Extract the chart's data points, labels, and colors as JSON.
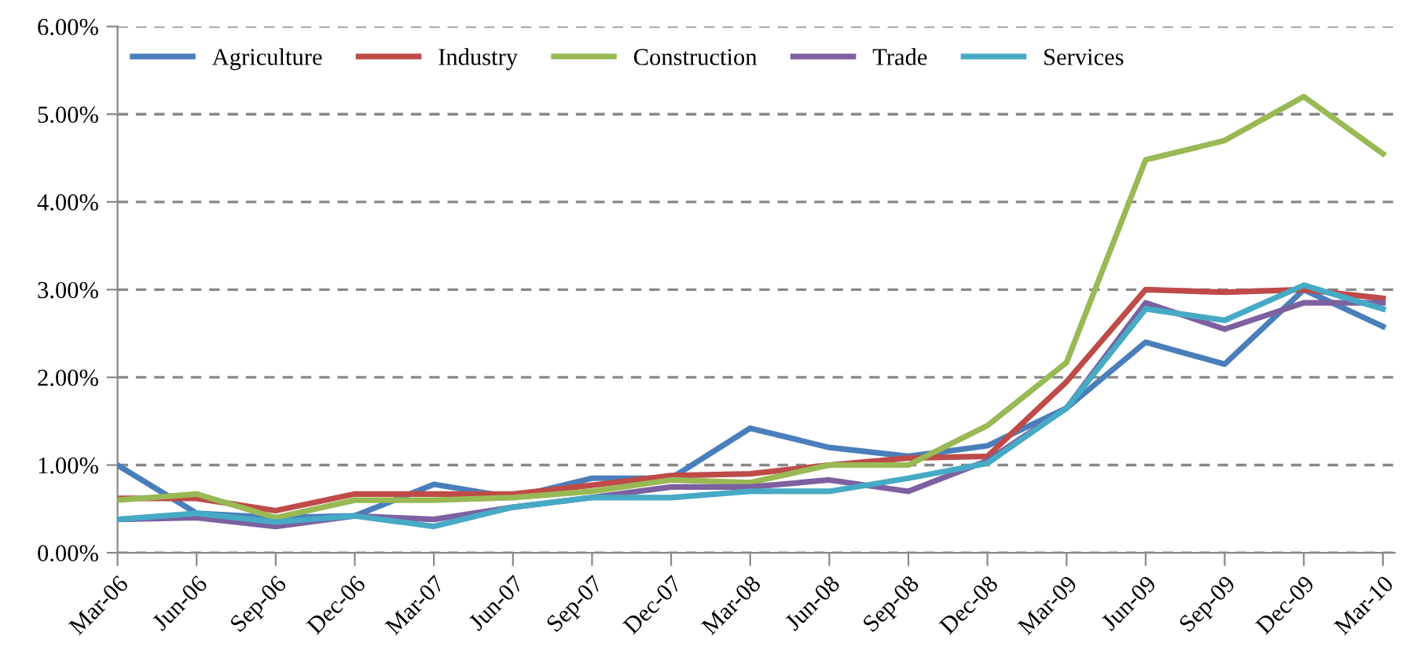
{
  "chart_data": {
    "type": "line",
    "categories": [
      "Mar-06",
      "Jun-06",
      "Sep-06",
      "Dec-06",
      "Mar-07",
      "Jun-07",
      "Sep-07",
      "Dec-07",
      "Mar-08",
      "Jun-08",
      "Sep-08",
      "Dec-08",
      "Mar-09",
      "Jun-09",
      "Sep-09",
      "Dec-09",
      "Mar-10"
    ],
    "series": [
      {
        "name": "Agriculture",
        "color": "#4a7ebb",
        "values": [
          1.0,
          0.45,
          0.4,
          0.42,
          0.78,
          0.63,
          0.85,
          0.85,
          1.42,
          1.2,
          1.1,
          1.22,
          1.65,
          2.4,
          2.15,
          3.0,
          2.58
        ]
      },
      {
        "name": "Industry",
        "color": "#be4b48",
        "values": [
          0.62,
          0.62,
          0.48,
          0.67,
          0.67,
          0.67,
          0.77,
          0.88,
          0.9,
          1.0,
          1.08,
          1.1,
          1.95,
          3.0,
          2.97,
          3.0,
          2.9
        ]
      },
      {
        "name": "Construction",
        "color": "#98b954",
        "values": [
          0.6,
          0.67,
          0.4,
          0.6,
          0.6,
          0.63,
          0.7,
          0.83,
          0.8,
          1.0,
          1.0,
          1.45,
          2.17,
          4.48,
          4.7,
          5.2,
          4.55
        ]
      },
      {
        "name": "Trade",
        "color": "#7d60a0",
        "values": [
          0.38,
          0.4,
          0.3,
          0.42,
          0.38,
          0.52,
          0.63,
          0.75,
          0.75,
          0.83,
          0.7,
          1.05,
          1.65,
          2.85,
          2.55,
          2.85,
          2.85
        ]
      },
      {
        "name": "Services",
        "color": "#46aac5",
        "values": [
          0.38,
          0.45,
          0.35,
          0.42,
          0.3,
          0.52,
          0.63,
          0.63,
          0.7,
          0.7,
          0.85,
          1.02,
          1.65,
          2.78,
          2.65,
          3.05,
          2.78
        ]
      }
    ],
    "ylim": [
      0,
      6
    ],
    "yticks": [
      {
        "value": 0,
        "label": "0.00%"
      },
      {
        "value": 1,
        "label": "1.00%"
      },
      {
        "value": 2,
        "label": "2.00%"
      },
      {
        "value": 3,
        "label": "3.00%"
      },
      {
        "value": 4,
        "label": "4.00%"
      },
      {
        "value": 5,
        "label": "5.00%"
      },
      {
        "value": 6,
        "label": "6.00%"
      }
    ],
    "grid": "y",
    "legend": "top",
    "marker": "none",
    "line_style": "solid"
  }
}
